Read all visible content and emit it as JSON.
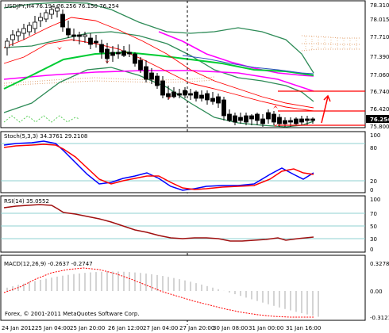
{
  "chart_header": {
    "symbol_timeframe": "USDJPY,H4",
    "ohlc": "76.194 76.256 76.150 76.254"
  },
  "price_axis": {
    "ticks": [
      "78.310",
      "78.015",
      "77.710",
      "77.390",
      "77.060",
      "76.740",
      "76.420",
      "76.254",
      "75.800"
    ],
    "current_price": "76.254",
    "current_bg": "#000000"
  },
  "time_axis": {
    "labels": [
      "24 Jan 2012",
      "25 Jan 04:00",
      "25 Jan 20:00",
      "26 Jan 12:00",
      "27 Jan 04:00",
      "27 Jan 20:00",
      "30 Jan 08:00",
      "31 Jan 00:00",
      "31 Jan 16:00"
    ]
  },
  "indicators": {
    "stoch": {
      "title": "Stoch(5,3,3) 34.3761 29.2108",
      "levels": [
        "100",
        "80",
        "20",
        "0"
      ],
      "main_color": "#0000ff",
      "signal_color": "#ff0000"
    },
    "rsi": {
      "title": "RSI(14) 35.0552",
      "levels": [
        "100",
        "70",
        "50",
        "30",
        "0"
      ],
      "line_color": "#a01010"
    },
    "macd": {
      "title": "MACD(12,26,9) -0.2637 -0.2747",
      "levels": [
        "0.3278",
        "0.00",
        "-0.3121"
      ],
      "hist_color": "#c0c0c0",
      "signal_color": "#ff0000"
    }
  },
  "footer": {
    "copyright": "Forex, © 2001-2011 MetaQuotes Software Corp."
  },
  "colors": {
    "bollinger": "#2e8b57",
    "ma_fast": "#ff0000",
    "ma_magenta": "#ff00ff",
    "ma_green": "#00cc33",
    "grid_vline": "#000000",
    "level_line": "#ff0000"
  }
}
